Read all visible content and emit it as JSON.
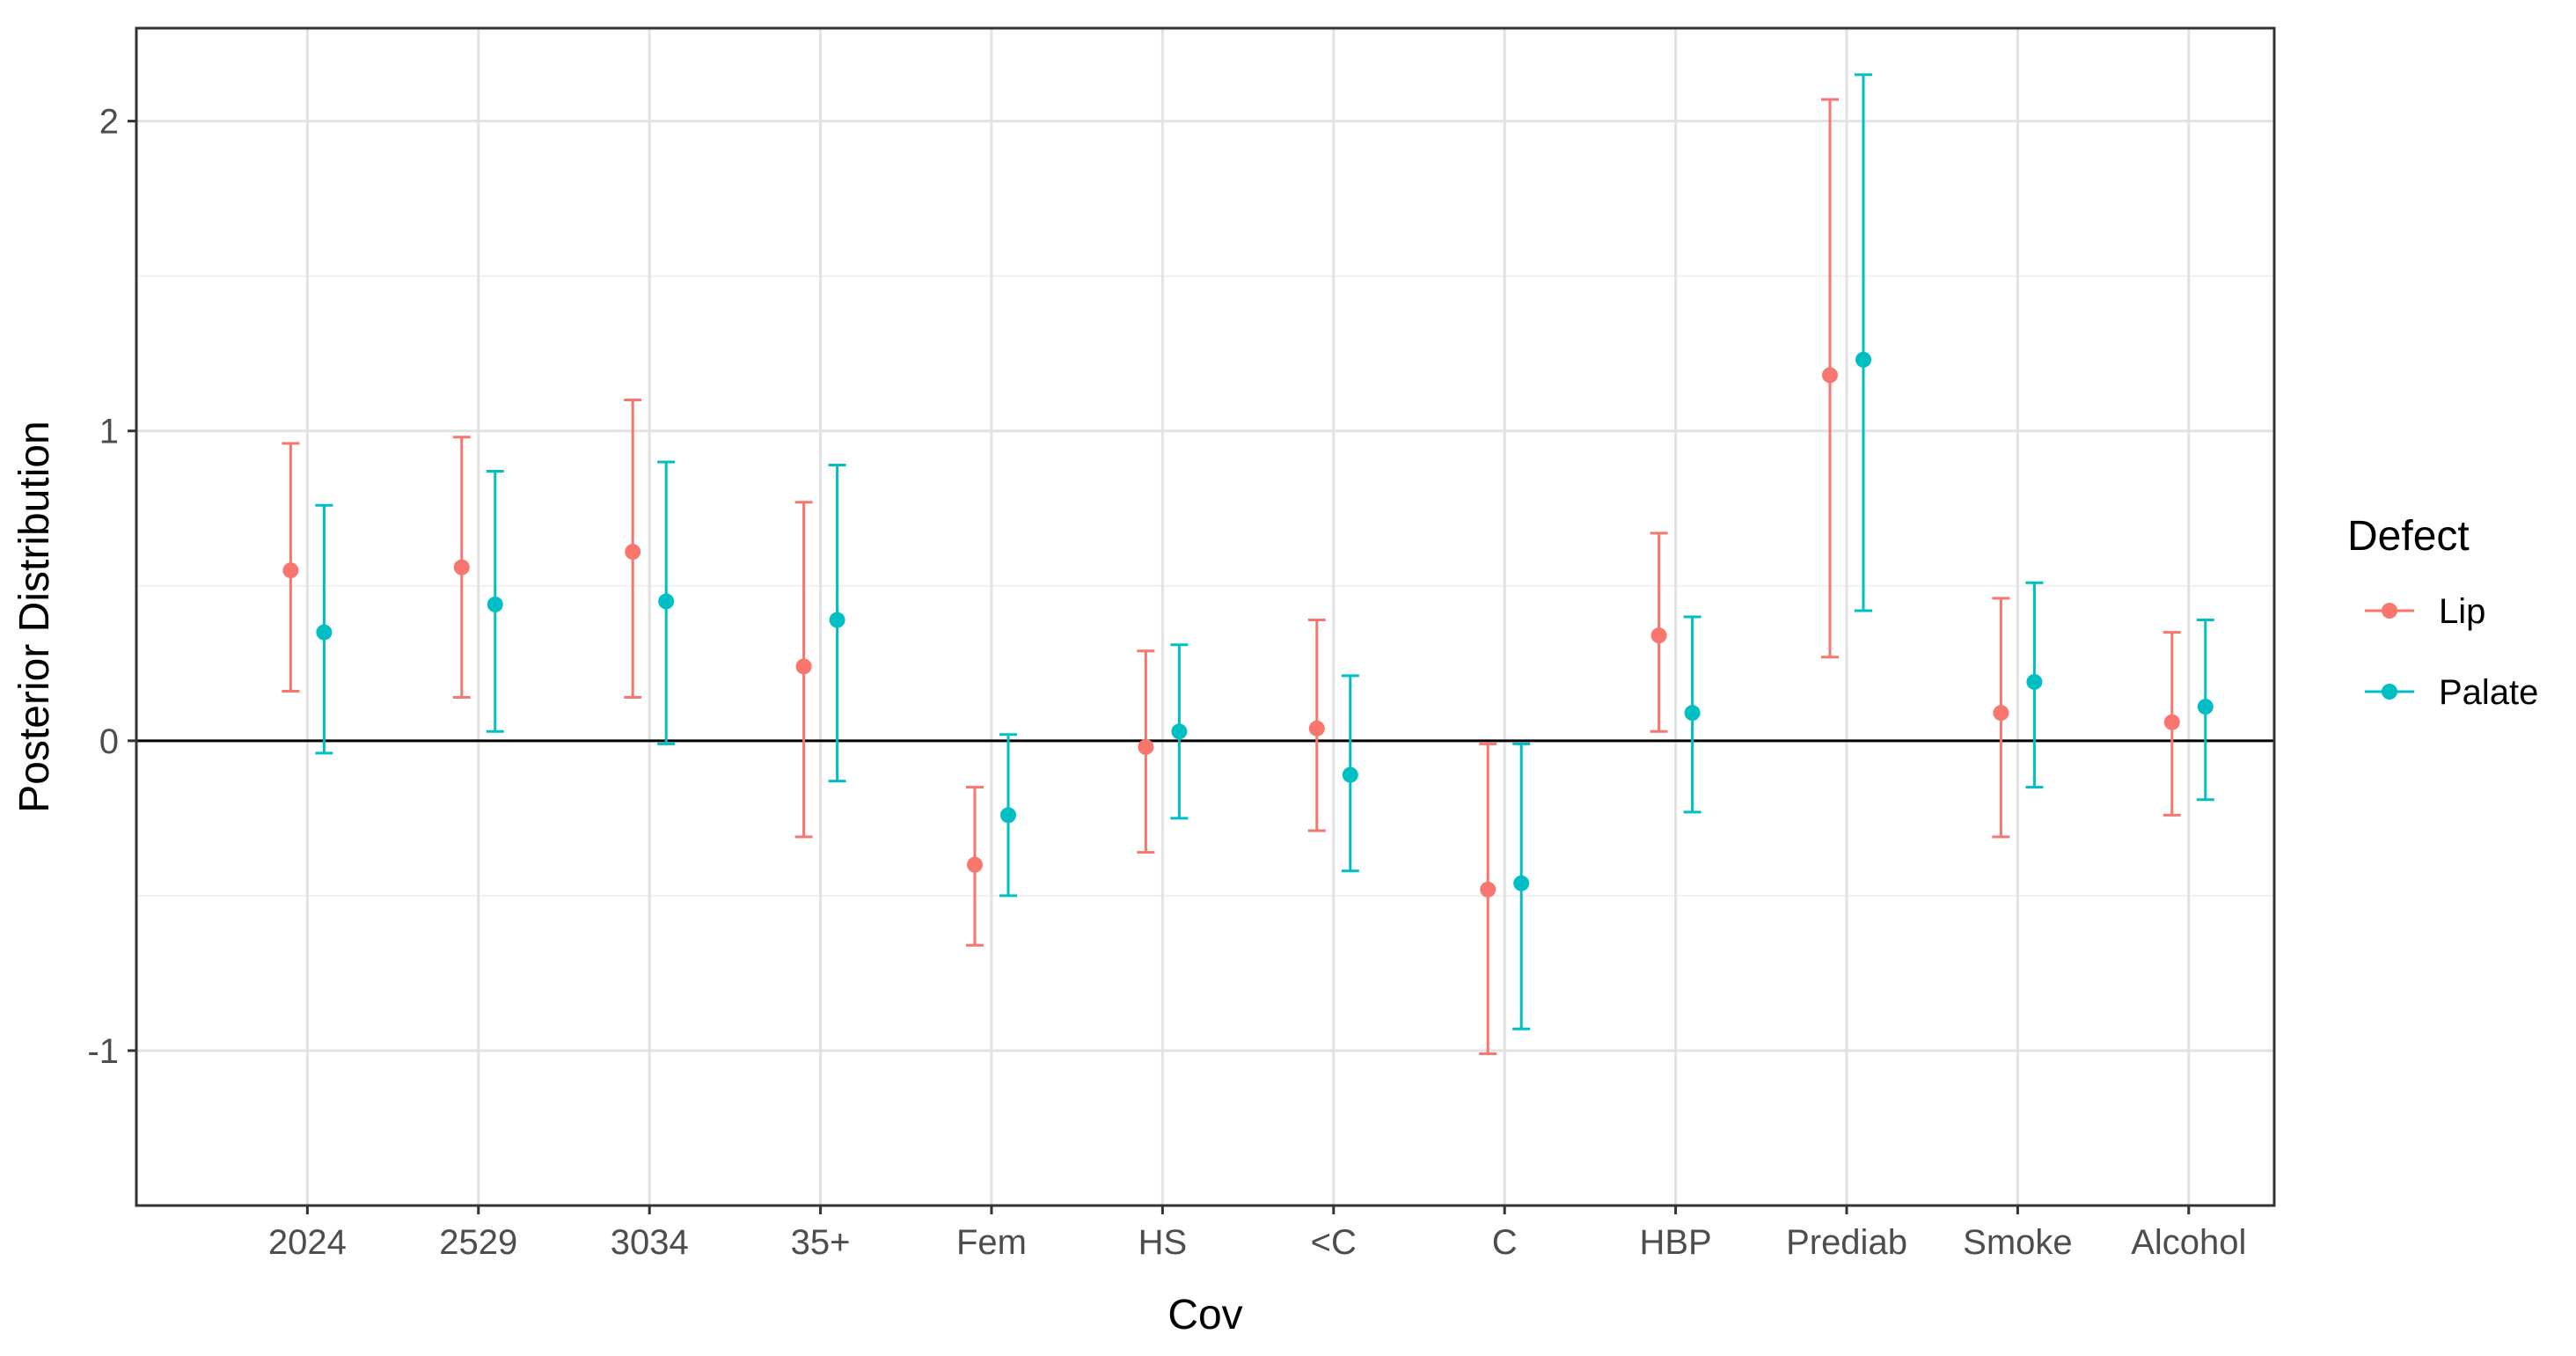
{
  "chart_data": {
    "type": "errorbar",
    "title": "",
    "xlabel": "Cov",
    "ylabel": "Posterior Distribution",
    "ylim": [
      -1.5,
      2.3
    ],
    "yticks": [
      -1,
      0,
      1,
      2
    ],
    "hline_at": 0,
    "categories": [
      "2024",
      "2529",
      "3034",
      "35+",
      "Fem",
      "HS",
      "<C",
      "C",
      "HBP",
      "Prediab",
      "Smoke",
      "Alcohol"
    ],
    "legend": {
      "title": "Defect",
      "position": "right"
    },
    "series": [
      {
        "name": "Lip",
        "color": "#F8766D",
        "estimate": [
          0.55,
          0.56,
          0.61,
          0.24,
          -0.4,
          -0.02,
          0.04,
          -0.48,
          0.34,
          1.18,
          0.09,
          0.06
        ],
        "lower": [
          0.16,
          0.14,
          0.14,
          -0.31,
          -0.66,
          -0.36,
          -0.29,
          -1.01,
          0.03,
          0.27,
          -0.31,
          -0.24
        ],
        "upper": [
          0.96,
          0.98,
          1.1,
          0.77,
          -0.15,
          0.29,
          0.39,
          -0.01,
          0.67,
          2.07,
          0.46,
          0.35
        ]
      },
      {
        "name": "Palate",
        "color": "#00BFC4",
        "estimate": [
          0.35,
          0.44,
          0.45,
          0.39,
          -0.24,
          0.03,
          -0.11,
          -0.46,
          0.09,
          1.23,
          0.19,
          0.11
        ],
        "lower": [
          -0.04,
          0.03,
          -0.01,
          -0.13,
          -0.5,
          -0.25,
          -0.42,
          -0.93,
          -0.23,
          0.42,
          -0.15,
          -0.19
        ],
        "upper": [
          0.76,
          0.87,
          0.9,
          0.89,
          0.02,
          0.31,
          0.21,
          -0.01,
          0.4,
          2.15,
          0.51,
          0.39
        ]
      }
    ]
  }
}
